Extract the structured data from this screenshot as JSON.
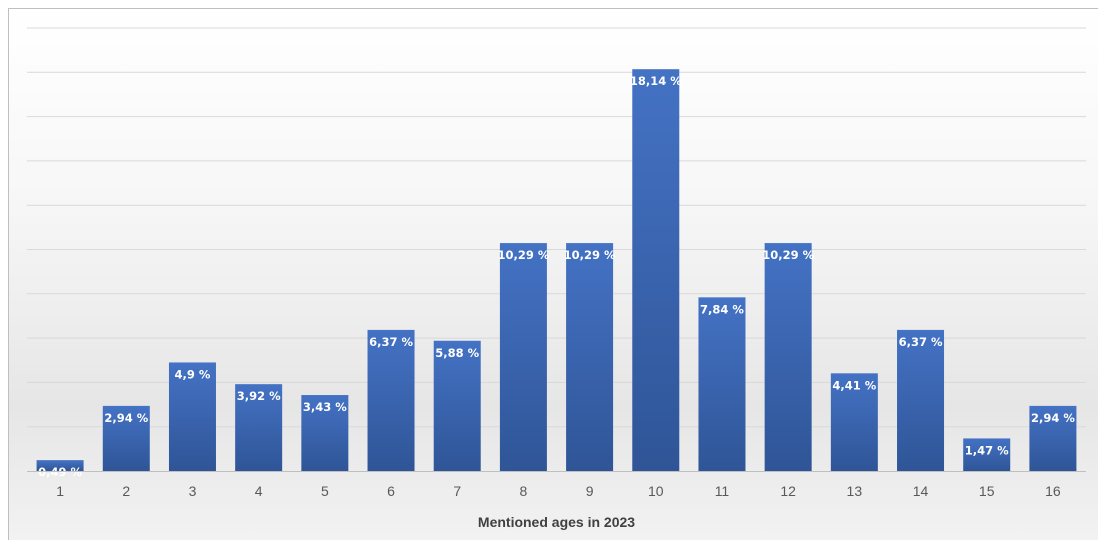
{
  "chart_data": {
    "type": "bar",
    "title": "",
    "xlabel": "Mentioned ages in 2023",
    "ylabel": "",
    "categories": [
      "1",
      "2",
      "3",
      "4",
      "5",
      "6",
      "7",
      "8",
      "9",
      "10",
      "11",
      "12",
      "13",
      "14",
      "15",
      "16"
    ],
    "values": [
      0.49,
      2.94,
      4.9,
      3.92,
      3.43,
      6.37,
      5.88,
      10.29,
      10.29,
      18.14,
      7.84,
      10.29,
      4.41,
      6.37,
      1.47,
      2.94
    ],
    "data_labels": [
      "0,49 %",
      "2,94 %",
      "4,9 %",
      "3,92 %",
      "3,43 %",
      "6,37 %",
      "5,88 %",
      "10,29 %",
      "10,29 %",
      "18,14 %",
      "7,84 %",
      "10,29 %",
      "4,41 %",
      "6,37 %",
      "1,47 %",
      "2,94 %"
    ],
    "ylim": [
      0,
      20
    ],
    "grid": true,
    "legend": "none",
    "colors": {
      "bar_top": "#4472c4",
      "bar_bottom": "#2f5597",
      "gridline": "#d9d9d9",
      "axis": "#bfbfbf"
    }
  }
}
